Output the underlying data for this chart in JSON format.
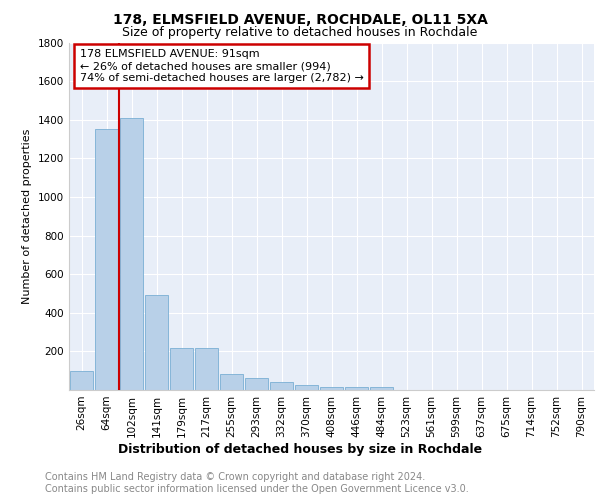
{
  "title1": "178, ELMSFIELD AVENUE, ROCHDALE, OL11 5XA",
  "title2": "Size of property relative to detached houses in Rochdale",
  "xlabel": "Distribution of detached houses by size in Rochdale",
  "ylabel": "Number of detached properties",
  "categories": [
    "26sqm",
    "64sqm",
    "102sqm",
    "141sqm",
    "179sqm",
    "217sqm",
    "255sqm",
    "293sqm",
    "332sqm",
    "370sqm",
    "408sqm",
    "446sqm",
    "484sqm",
    "523sqm",
    "561sqm",
    "599sqm",
    "637sqm",
    "675sqm",
    "714sqm",
    "752sqm",
    "790sqm"
  ],
  "values": [
    100,
    1350,
    1410,
    490,
    215,
    215,
    82,
    62,
    42,
    28,
    18,
    18,
    18,
    0,
    0,
    0,
    0,
    0,
    0,
    0,
    0
  ],
  "bar_color": "#b8d0e8",
  "bar_edge_color": "#7aafd4",
  "vline_x": 1.5,
  "annotation_text": "178 ELMSFIELD AVENUE: 91sqm\n← 26% of detached houses are smaller (994)\n74% of semi-detached houses are larger (2,782) →",
  "annotation_box_color": "#ffffff",
  "annotation_box_edge": "#cc0000",
  "vline_color": "#cc0000",
  "ylim": [
    0,
    1800
  ],
  "yticks": [
    0,
    200,
    400,
    600,
    800,
    1000,
    1200,
    1400,
    1600,
    1800
  ],
  "background_color": "#e8eef8",
  "grid_color": "#ffffff",
  "footer": "Contains HM Land Registry data © Crown copyright and database right 2024.\nContains public sector information licensed under the Open Government Licence v3.0.",
  "title1_fontsize": 10,
  "title2_fontsize": 9,
  "annot_fontsize": 8,
  "xlabel_fontsize": 9,
  "ylabel_fontsize": 8,
  "tick_fontsize": 7.5,
  "footer_fontsize": 7
}
